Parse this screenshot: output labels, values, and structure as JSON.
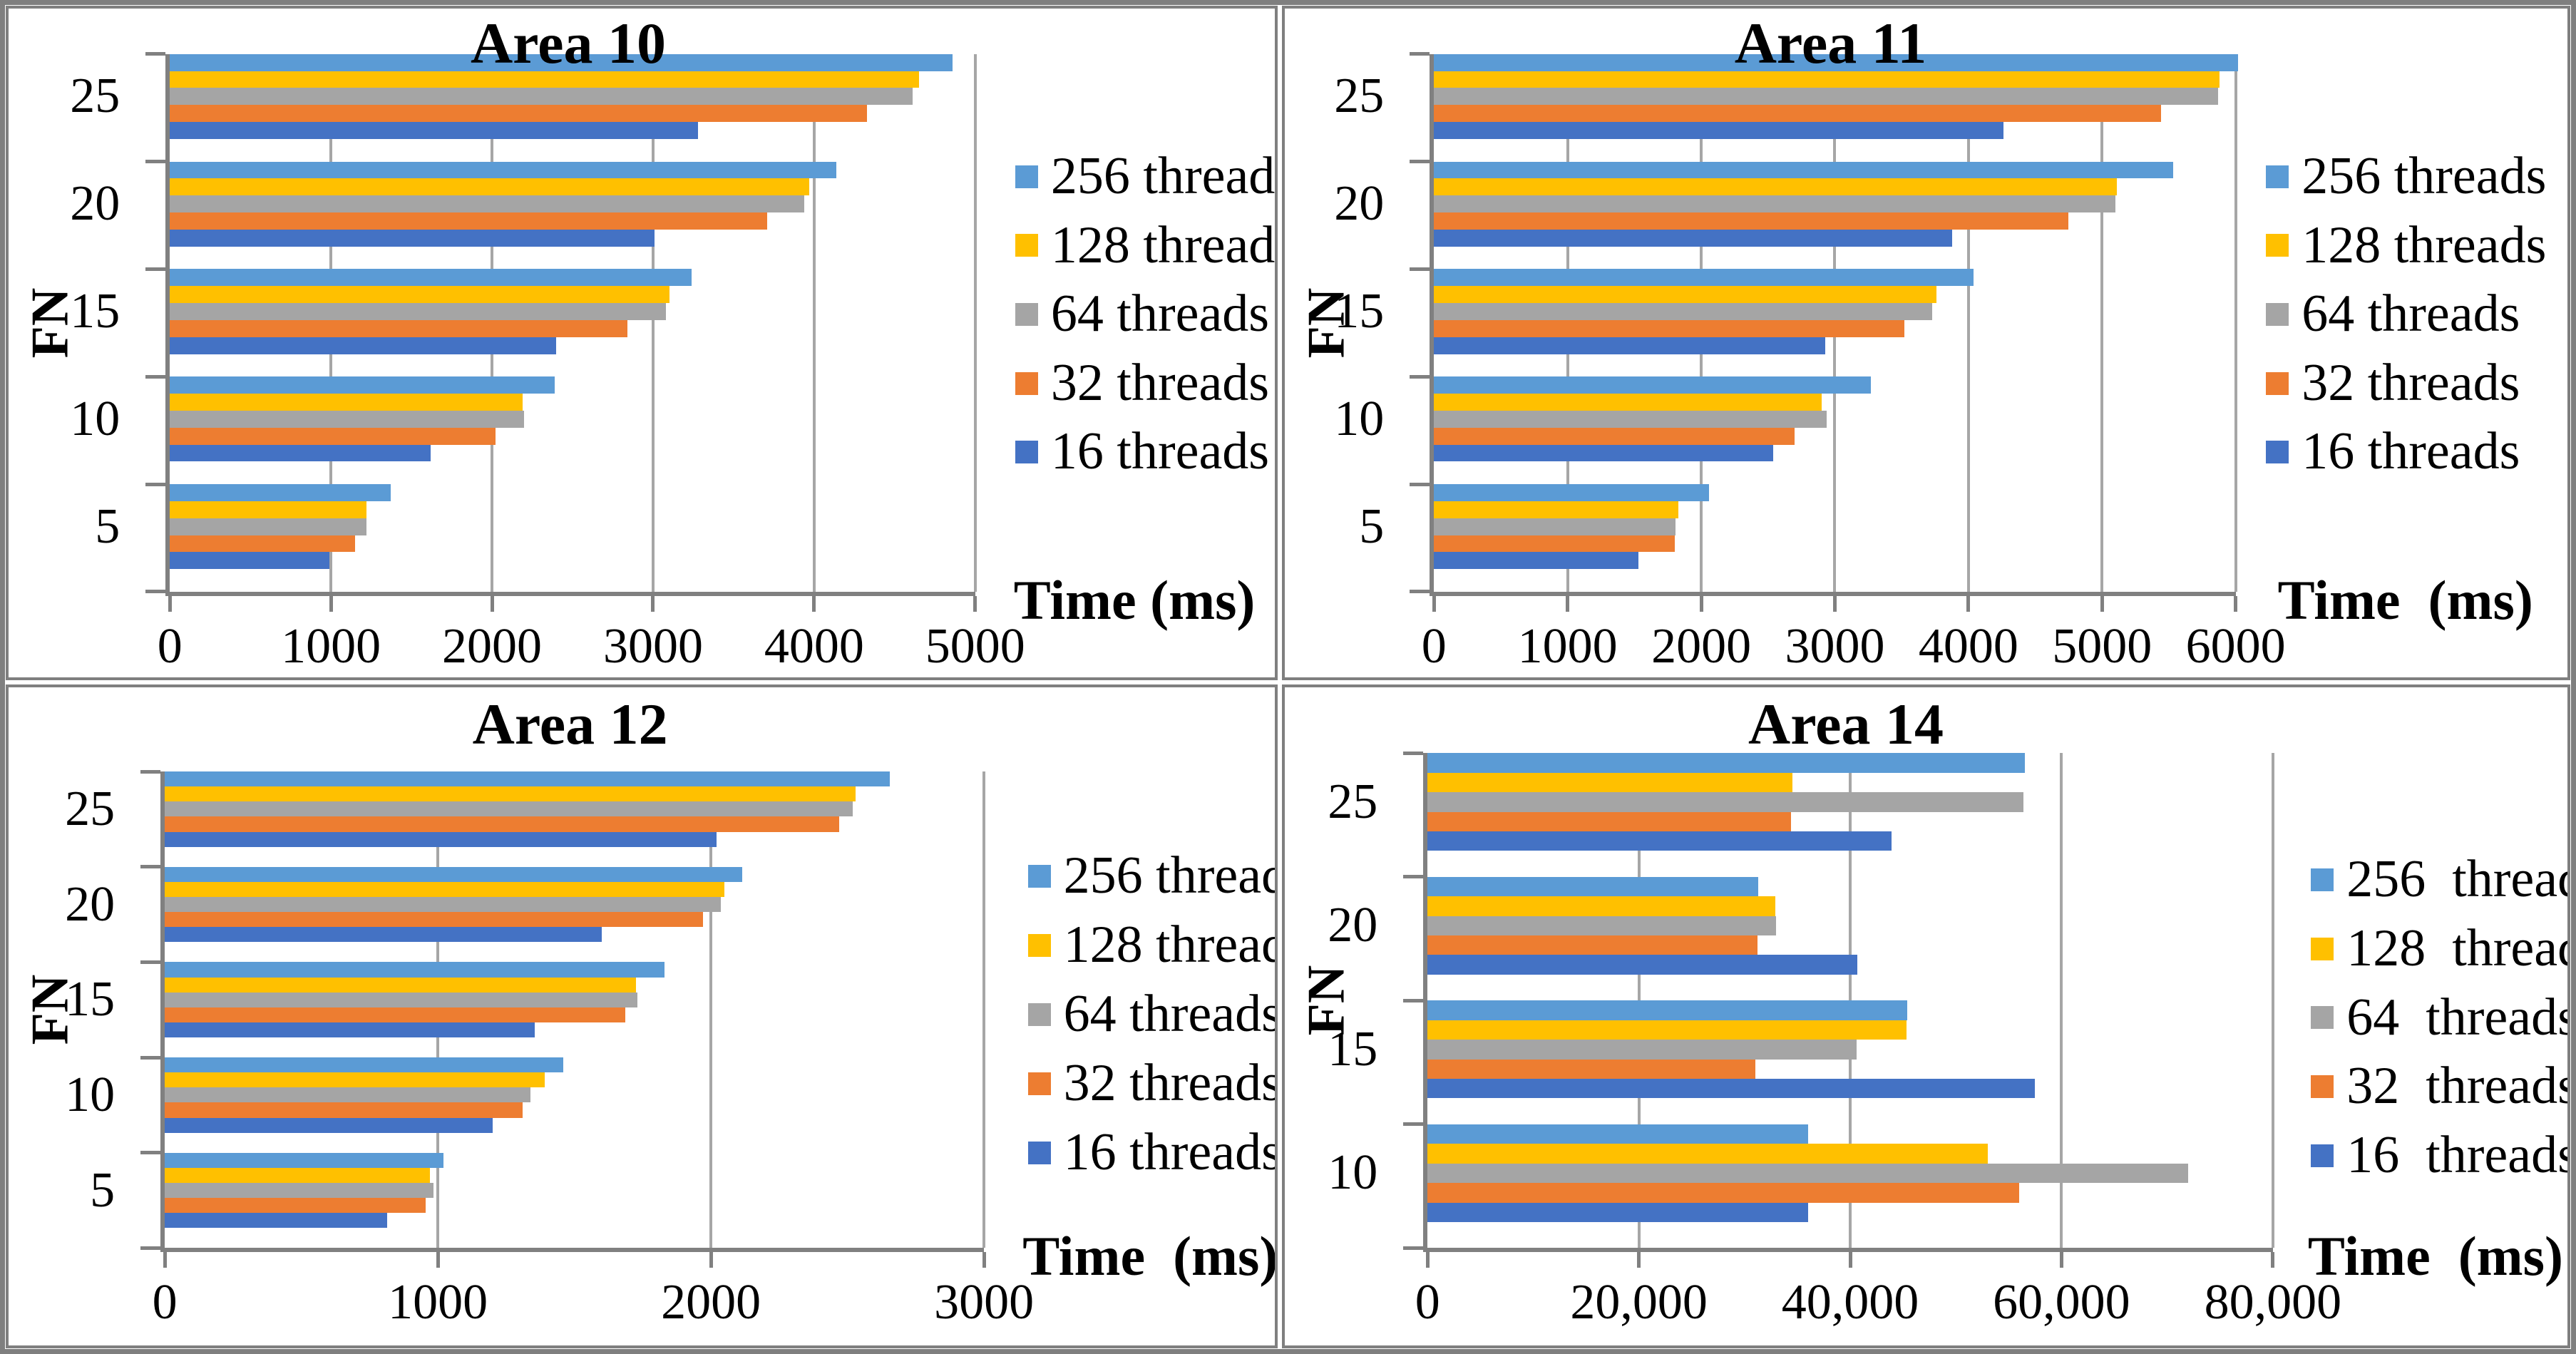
{
  "colors": {
    "axis": "#808080",
    "gridline": "#A6A6A6",
    "frame": "#7F7F7F",
    "background": "#FFFFFF"
  },
  "chart_data": [
    {
      "type": "bar",
      "orientation": "horizontal",
      "title": "Area 10",
      "xlabel": "Time (ms)",
      "ylabel": "FN",
      "categories": [
        "5",
        "10",
        "15",
        "20",
        "25"
      ],
      "xlim": [
        0,
        5000
      ],
      "grid": true,
      "legend_position": "right",
      "xticks": [
        {
          "v": 0,
          "label": "0"
        },
        {
          "v": 1000,
          "label": "1000"
        },
        {
          "v": 2000,
          "label": "2000"
        },
        {
          "v": 3000,
          "label": "3000"
        },
        {
          "v": 4000,
          "label": "4000"
        },
        {
          "v": 5000,
          "label": "5000"
        }
      ],
      "series": [
        {
          "name": "256 threads",
          "color": "#5B9BD5",
          "values": [
            1370,
            2390,
            3240,
            4140,
            4860
          ]
        },
        {
          "name": "128 threads",
          "color": "#FFC000",
          "values": [
            1220,
            2190,
            3100,
            3970,
            4650
          ]
        },
        {
          "name": "64 threads",
          "color": "#A5A5A5",
          "values": [
            1220,
            2200,
            3080,
            3940,
            4610
          ]
        },
        {
          "name": "32 threads",
          "color": "#ED7D31",
          "values": [
            1150,
            2020,
            2840,
            3710,
            4330
          ]
        },
        {
          "name": "16 threads",
          "color": "#4472C4",
          "values": [
            990,
            1620,
            2400,
            3010,
            3280
          ]
        }
      ]
    },
    {
      "type": "bar",
      "orientation": "horizontal",
      "title": "Area 11",
      "xlabel": "Time  (ms)",
      "ylabel": "FN",
      "categories": [
        "5",
        "10",
        "15",
        "20",
        "25"
      ],
      "xlim": [
        0,
        6000
      ],
      "grid": true,
      "legend_position": "right",
      "xticks": [
        {
          "v": 0,
          "label": "0"
        },
        {
          "v": 1000,
          "label": "1000"
        },
        {
          "v": 2000,
          "label": "2000"
        },
        {
          "v": 3000,
          "label": "3000"
        },
        {
          "v": 4000,
          "label": "4000"
        },
        {
          "v": 5000,
          "label": "5000"
        },
        {
          "v": 6000,
          "label": "6000"
        }
      ],
      "series": [
        {
          "name": "256 threads",
          "color": "#5B9BD5",
          "values": [
            2060,
            3270,
            4040,
            5530,
            6020
          ]
        },
        {
          "name": "128 threads",
          "color": "#FFC000",
          "values": [
            1830,
            2900,
            3760,
            5110,
            5880
          ]
        },
        {
          "name": "64 threads",
          "color": "#A5A5A5",
          "values": [
            1810,
            2940,
            3730,
            5100,
            5870
          ]
        },
        {
          "name": "32 threads",
          "color": "#ED7D31",
          "values": [
            1800,
            2700,
            3520,
            4750,
            5440
          ]
        },
        {
          "name": "16 threads",
          "color": "#4472C4",
          "values": [
            1530,
            2540,
            2930,
            3880,
            4260
          ]
        }
      ]
    },
    {
      "type": "bar",
      "orientation": "horizontal",
      "title": "Area 12",
      "xlabel": "Time  (ms)",
      "ylabel": "FN",
      "categories": [
        "5",
        "10",
        "15",
        "20",
        "25"
      ],
      "xlim": [
        0,
        3000
      ],
      "grid": true,
      "legend_position": "right",
      "xticks": [
        {
          "v": 0,
          "label": "0"
        },
        {
          "v": 1000,
          "label": "1000"
        },
        {
          "v": 2000,
          "label": "2000"
        },
        {
          "v": 3000,
          "label": "3000"
        }
      ],
      "series": [
        {
          "name": "256 threads",
          "color": "#5B9BD5",
          "values": [
            1020,
            1460,
            1830,
            2115,
            2655
          ]
        },
        {
          "name": "128 threads",
          "color": "#FFC000",
          "values": [
            970,
            1390,
            1725,
            2050,
            2530
          ]
        },
        {
          "name": "64 threads",
          "color": "#A5A5A5",
          "values": [
            985,
            1340,
            1730,
            2035,
            2520
          ]
        },
        {
          "name": "32 threads",
          "color": "#ED7D31",
          "values": [
            955,
            1310,
            1685,
            1970,
            2470
          ]
        },
        {
          "name": "16 threads",
          "color": "#4472C4",
          "values": [
            815,
            1200,
            1355,
            1600,
            2020
          ]
        }
      ]
    },
    {
      "type": "bar",
      "orientation": "horizontal",
      "title": "Area 14",
      "xlabel": "Time  (ms)",
      "ylabel": "FN",
      "categories": [
        "10",
        "15",
        "20",
        "25"
      ],
      "xlim": [
        0,
        80000
      ],
      "grid": true,
      "legend_position": "right",
      "xticks": [
        {
          "v": 0,
          "label": "0"
        },
        {
          "v": 20000,
          "label": "20,000"
        },
        {
          "v": 40000,
          "label": "40,000"
        },
        {
          "v": 60000,
          "label": "60,000"
        },
        {
          "v": 80000,
          "label": "80,000"
        }
      ],
      "series": [
        {
          "name": "256  threads",
          "color": "#5B9BD5",
          "values": [
            36000,
            45400,
            31300,
            56500
          ]
        },
        {
          "name": "128  threads",
          "color": "#FFC000",
          "values": [
            53000,
            45300,
            32900,
            34500
          ]
        },
        {
          "name": "64  threads",
          "color": "#A5A5A5",
          "values": [
            72000,
            40600,
            33000,
            56400
          ]
        },
        {
          "name": "32  threads",
          "color": "#ED7D31",
          "values": [
            56000,
            31000,
            31200,
            34400
          ]
        },
        {
          "name": "16  threads",
          "color": "#4472C4",
          "values": [
            36000,
            57500,
            40700,
            43900
          ]
        }
      ]
    }
  ]
}
